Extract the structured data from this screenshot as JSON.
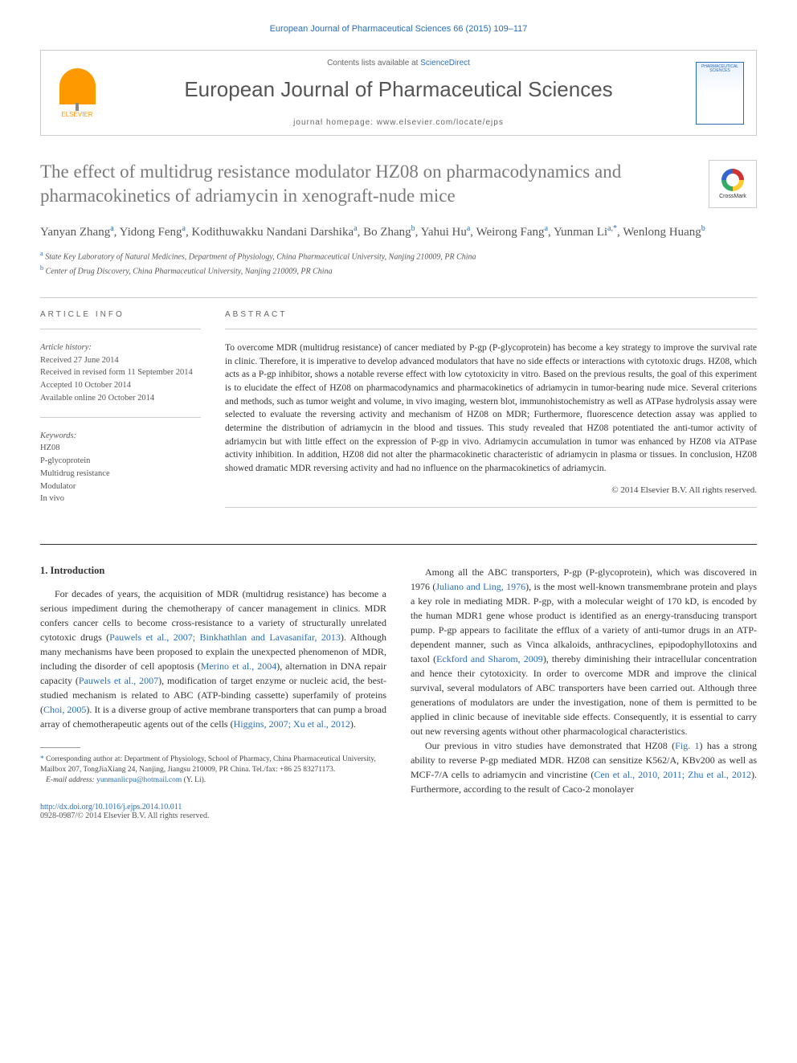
{
  "header": {
    "citation": "European Journal of Pharmaceutical Sciences 66 (2015) 109–117",
    "contents_prefix": "Contents lists available at ",
    "contents_link": "ScienceDirect",
    "journal_name": "European Journal of Pharmaceutical Sciences",
    "homepage_prefix": "journal homepage: ",
    "homepage_url": "www.elsevier.com/locate/ejps",
    "elsevier_label": "ELSEVIER",
    "cover_title": "PHARMACEUTICAL SCIENCES",
    "crossmark": "CrossMark"
  },
  "article": {
    "title": "The effect of multidrug resistance modulator HZ08 on pharmacodynamics and pharmacokinetics of adriamycin in xenograft-nude mice",
    "authors_html": "Yanyan Zhang|a|, Yidong Feng|a|, Kodithuwakku Nandani Darshika|a|, Bo Zhang|b|, Yahui Hu|a|, Weirong Fang|a|, Yunman Li|a,*|, Wenlong Huang|b",
    "affiliations": [
      {
        "sup": "a",
        "text": "State Key Laboratory of Natural Medicines, Department of Physiology, China Pharmaceutical University, Nanjing 210009, PR China"
      },
      {
        "sup": "b",
        "text": "Center of Drug Discovery, China Pharmaceutical University, Nanjing 210009, PR China"
      }
    ]
  },
  "info": {
    "heading": "ARTICLE INFO",
    "history_label": "Article history:",
    "history": [
      "Received 27 June 2014",
      "Received in revised form 11 September 2014",
      "Accepted 10 October 2014",
      "Available online 20 October 2014"
    ],
    "keywords_label": "Keywords:",
    "keywords": [
      "HZ08",
      "P-glycoprotein",
      "Multidrug resistance",
      "Modulator",
      "In vivo"
    ]
  },
  "abstract": {
    "heading": "ABSTRACT",
    "text": "To overcome MDR (multidrug resistance) of cancer mediated by P-gp (P-glycoprotein) has become a key strategy to improve the survival rate in clinic. Therefore, it is imperative to develop advanced modulators that have no side effects or interactions with cytotoxic drugs. HZ08, which acts as a P-gp inhibitor, shows a notable reverse effect with low cytotoxicity in vitro. Based on the previous results, the goal of this experiment is to elucidate the effect of HZ08 on pharmacodynamics and pharmacokinetics of adriamycin in tumor-bearing nude mice. Several criterions and methods, such as tumor weight and volume, in vivo imaging, western blot, immunohistochemistry as well as ATPase hydrolysis assay were selected to evaluate the reversing activity and mechanism of HZ08 on MDR; Furthermore, fluorescence detection assay was applied to determine the distribution of adriamycin in the blood and tissues. This study revealed that HZ08 potentiated the anti-tumor activity of adriamycin but with little effect on the expression of P-gp in vivo. Adriamycin accumulation in tumor was enhanced by HZ08 via ATPase activity inhibition. In addition, HZ08 did not alter the pharmacokinetic characteristic of adriamycin in plasma or tissues. In conclusion, HZ08 showed dramatic MDR reversing activity and had no influence on the pharmacokinetics of adriamycin.",
    "copyright": "© 2014 Elsevier B.V. All rights reserved."
  },
  "body": {
    "section1_heading": "1. Introduction",
    "col1_p1": "For decades of years, the acquisition of MDR (multidrug resistance) has become a serious impediment during the chemotherapy of cancer management in clinics. MDR confers cancer cells to become cross-resistance to a variety of structurally unrelated cytotoxic drugs (",
    "col1_ref1": "Pauwels et al., 2007; Binkhathlan and Lavasanifar, 2013",
    "col1_p1b": "). Although many mechanisms have been proposed to explain the unexpected phenomenon of MDR, including the disorder of cell apoptosis (",
    "col1_ref2": "Merino et al., 2004",
    "col1_p1c": "), alternation in DNA repair capacity (",
    "col1_ref3": "Pauwels et al., 2007",
    "col1_p1d": "), modification of target enzyme or nucleic acid, the best-studied mechanism is related to ABC (ATP-binding cassette) superfamily of proteins (",
    "col1_ref4": "Choi, 2005",
    "col1_p1e": "). It is a diverse group of active membrane transporters that can pump a broad array of chemotherapeutic agents out of the cells (",
    "col1_ref5": "Higgins, 2007; Xu et al., 2012",
    "col1_p1f": ").",
    "col2_p1a": "Among all the ABC transporters, P-gp (P-glycoprotein), which was discovered in 1976 (",
    "col2_ref1": "Juliano and Ling, 1976",
    "col2_p1b": "), is the most well-known transmembrane protein and plays a key role in mediating MDR. P-gp, with a molecular weight of 170 kD, is encoded by the human MDR1 gene whose product is identified as an energy-transducing transport pump. P-gp appears to facilitate the efflux of a variety of anti-tumor drugs in an ATP-dependent manner, such as Vinca alkaloids, anthracyclines, epipodophyllotoxins and taxol (",
    "col2_ref2": "Eckford and Sharom, 2009",
    "col2_p1c": "), thereby diminishing their intracellular concentration and hence their cytotoxicity. In order to overcome MDR and improve the clinical survival, several modulators of ABC transporters have been carried out. Although three generations of modulators are under the investigation, none of them is permitted to be applied in clinic because of inevitable side effects. Consequently, it is essential to carry out new reversing agents without other pharmacological characteristics.",
    "col2_p2a": "Our previous in vitro studies have demonstrated that HZ08 (",
    "col2_ref3": "Fig. 1",
    "col2_p2b": ") has a strong ability to reverse P-gp mediated MDR. HZ08 can sensitize K562/A, KBv200 as well as MCF-7/A cells to adriamycin and vincristine (",
    "col2_ref4": "Cen et al., 2010, 2011; Zhu et al., 2012",
    "col2_p2c": "). Furthermore, according to the result of Caco-2 monolayer"
  },
  "footnote": {
    "corr_label": "Corresponding author at: Department of Physiology, School of Pharmacy, China Pharmaceutical University, Mailbox 207, TongJiaXiang 24, Nanjing, Jiangsu 210009, PR China. Tel./fax: +86 25 83271173.",
    "email_label": "E-mail address: ",
    "email": "yunmanlicpu@hotmail.com",
    "email_suffix": " (Y. Li)."
  },
  "doi": {
    "url": "http://dx.doi.org/10.1016/j.ejps.2014.10.011",
    "issn_line": "0928-0987/© 2014 Elsevier B.V. All rights reserved."
  },
  "colors": {
    "link": "#2a6ebb",
    "text": "#333333",
    "muted": "#666666"
  }
}
